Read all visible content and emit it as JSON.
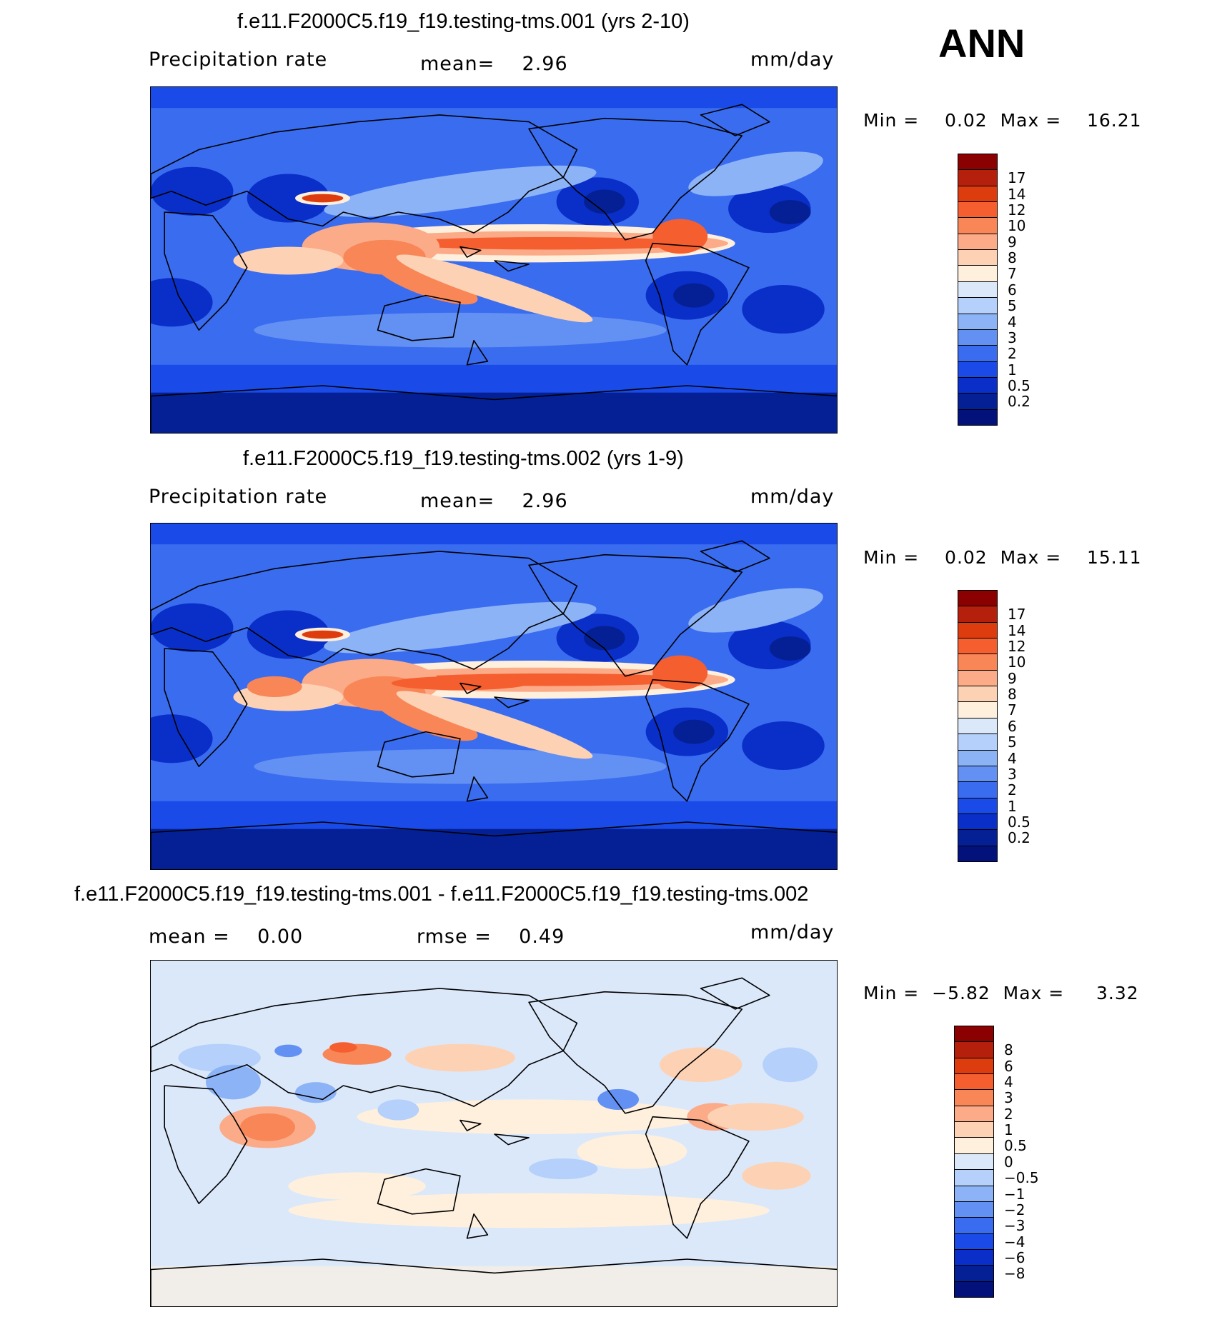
{
  "season": "ANN",
  "panels": [
    {
      "title": "f.e11.F2000C5.f19_f19.testing-tms.001 (yrs 2-10)",
      "left_text": "Precipitation rate",
      "center_text": "mean=    2.96",
      "right_text": "mm/day",
      "minmax": "Min =    0.02  Max =    16.21",
      "kind": "precip",
      "colorbar": {
        "colors": [
          "#8b0000",
          "#b5200c",
          "#dd3c0f",
          "#f55e2f",
          "#f88656",
          "#fcab88",
          "#fdd2b4",
          "#fff0dd",
          "#dbe8fa",
          "#b4d0fb",
          "#8db3f7",
          "#6390f3",
          "#3a6cf0",
          "#1a4be8",
          "#0a2fc8",
          "#052095",
          "#02127a"
        ],
        "labels": [
          "17",
          "14",
          "12",
          "10",
          "9",
          "8",
          "7",
          "6",
          "5",
          "4",
          "3",
          "2",
          "1",
          "0.5",
          "0.2"
        ]
      }
    },
    {
      "title": "f.e11.F2000C5.f19_f19.testing-tms.002 (yrs 1-9)",
      "left_text": "Precipitation rate",
      "center_text": "mean=    2.96",
      "right_text": "mm/day",
      "minmax": "Min =    0.02  Max =    15.11",
      "kind": "precip",
      "colorbar": {
        "colors": [
          "#8b0000",
          "#b5200c",
          "#dd3c0f",
          "#f55e2f",
          "#f88656",
          "#fcab88",
          "#fdd2b4",
          "#fff0dd",
          "#dbe8fa",
          "#b4d0fb",
          "#8db3f7",
          "#6390f3",
          "#3a6cf0",
          "#1a4be8",
          "#0a2fc8",
          "#052095",
          "#02127a"
        ],
        "labels": [
          "17",
          "14",
          "12",
          "10",
          "9",
          "8",
          "7",
          "6",
          "5",
          "4",
          "3",
          "2",
          "1",
          "0.5",
          "0.2"
        ]
      }
    },
    {
      "title": "f.e11.F2000C5.f19_f19.testing-tms.001 - f.e11.F2000C5.f19_f19.testing-tms.002",
      "left_text": "mean =    0.00",
      "center_text": "rmse =    0.49",
      "right_text": "mm/day",
      "minmax": "Min =  −5.82  Max =     3.32",
      "kind": "diff",
      "colorbar": {
        "colors": [
          "#8b0000",
          "#b5200c",
          "#dd3c0f",
          "#f55e2f",
          "#f88656",
          "#fcab88",
          "#fdd2b4",
          "#fff0dd",
          "#dbe8fa",
          "#b4d0fb",
          "#8db3f7",
          "#6390f3",
          "#3a6cf0",
          "#1a4be8",
          "#0a2fc8",
          "#052095",
          "#02127a"
        ],
        "labels": [
          "8",
          "6",
          "4",
          "3",
          "2",
          "1",
          "0.5",
          "0",
          "−0.5",
          "−1",
          "−2",
          "−3",
          "−4",
          "−6",
          "−8"
        ]
      }
    }
  ]
}
